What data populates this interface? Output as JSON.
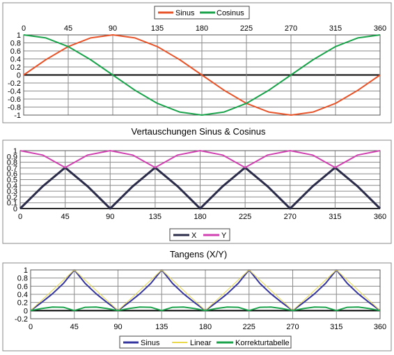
{
  "chart_data": [
    {
      "type": "line",
      "title": "",
      "xlabel": "",
      "ylabel": "",
      "xlim": [
        0,
        360
      ],
      "ylim": [
        -1,
        1
      ],
      "x_ticks": [
        "0",
        "45",
        "90",
        "135",
        "180",
        "225",
        "270",
        "315",
        "360"
      ],
      "y_ticks": [
        "1",
        "0.8",
        "0.6",
        "0.4",
        "0.2",
        "0",
        "-0.2",
        "-0.4",
        "-0.6",
        "-0.8",
        "-1"
      ],
      "x_tick_position": "top",
      "grid": true,
      "legend_position": "top-center",
      "x": [
        0,
        22.5,
        45,
        67.5,
        90,
        112.5,
        135,
        157.5,
        180,
        202.5,
        225,
        247.5,
        270,
        292.5,
        315,
        337.5,
        360
      ],
      "series": [
        {
          "name": "Sinus",
          "color": "#e8542a",
          "values": [
            0,
            0.383,
            0.707,
            0.924,
            1,
            0.924,
            0.707,
            0.383,
            0,
            -0.383,
            -0.707,
            -0.924,
            -1,
            -0.924,
            -0.707,
            -0.383,
            0
          ]
        },
        {
          "name": "Cosinus",
          "color": "#1aa34a",
          "values": [
            1,
            0.924,
            0.707,
            0.383,
            0,
            -0.383,
            -0.707,
            -0.924,
            -1,
            -0.924,
            -0.707,
            -0.383,
            0,
            0.383,
            0.707,
            0.924,
            1
          ]
        }
      ]
    },
    {
      "type": "line",
      "title": "Vertauschungen Sinus & Cosinus",
      "xlabel": "",
      "ylabel": "",
      "xlim": [
        0,
        360
      ],
      "ylim": [
        0,
        1
      ],
      "x_ticks": [
        "0",
        "45",
        "90",
        "135",
        "180",
        "225",
        "270",
        "315",
        "360"
      ],
      "y_ticks": [
        "1",
        "0.9",
        "0.8",
        "0.7",
        "0.6",
        "0.5",
        "0.4",
        "0.3",
        "0.2",
        "0.1",
        "0"
      ],
      "x_tick_position": "bottom",
      "grid": true,
      "legend_position": "bottom-center",
      "x": [
        0,
        22.5,
        45,
        67.5,
        90,
        112.5,
        135,
        157.5,
        180,
        202.5,
        225,
        247.5,
        270,
        292.5,
        315,
        337.5,
        360
      ],
      "series": [
        {
          "name": "X",
          "color": "#2b2b4a",
          "values": [
            0,
            0.383,
            0.707,
            0.383,
            0,
            0.383,
            0.707,
            0.383,
            0,
            0.383,
            0.707,
            0.383,
            0,
            0.383,
            0.707,
            0.383,
            0
          ]
        },
        {
          "name": "Y",
          "color": "#d040b0",
          "values": [
            1,
            0.924,
            0.707,
            0.924,
            1,
            0.924,
            0.707,
            0.924,
            1,
            0.924,
            0.707,
            0.924,
            1,
            0.924,
            0.707,
            0.924,
            1
          ]
        }
      ]
    },
    {
      "type": "line",
      "title": "Tangens (X/Y)",
      "xlabel": "",
      "ylabel": "",
      "xlim": [
        0,
        360
      ],
      "ylim": [
        -0.2,
        1
      ],
      "x_ticks": [
        "0",
        "45",
        "90",
        "135",
        "180",
        "225",
        "270",
        "315",
        "360"
      ],
      "y_ticks": [
        "1",
        "0.8",
        "0.6",
        "0.4",
        "0.2",
        "0",
        "-0.2"
      ],
      "x_tick_position": "bottom",
      "grid": true,
      "legend_position": "bottom-center",
      "x": [
        0,
        11.25,
        22.5,
        33.75,
        45,
        56.25,
        67.5,
        78.75,
        90,
        101.25,
        112.5,
        123.75,
        135,
        146.25,
        157.5,
        168.75,
        180,
        191.25,
        202.5,
        213.75,
        225,
        236.25,
        247.5,
        258.75,
        270,
        281.25,
        292.5,
        303.75,
        315,
        326.25,
        337.5,
        348.75,
        360
      ],
      "series": [
        {
          "name": "Sinus",
          "color": "#3535a0",
          "values": [
            0,
            0.199,
            0.414,
            0.668,
            1,
            0.668,
            0.414,
            0.199,
            0,
            0.199,
            0.414,
            0.668,
            1,
            0.668,
            0.414,
            0.199,
            0,
            0.199,
            0.414,
            0.668,
            1,
            0.668,
            0.414,
            0.199,
            0,
            0.199,
            0.414,
            0.668,
            1,
            0.668,
            0.414,
            0.199,
            0
          ]
        },
        {
          "name": "Linear",
          "color": "#e8d84a",
          "values": [
            0,
            0.25,
            0.5,
            0.75,
            1,
            0.75,
            0.5,
            0.25,
            0,
            0.25,
            0.5,
            0.75,
            1,
            0.75,
            0.5,
            0.25,
            0,
            0.25,
            0.5,
            0.75,
            1,
            0.75,
            0.5,
            0.25,
            0,
            0.25,
            0.5,
            0.75,
            1,
            0.75,
            0.5,
            0.25,
            0
          ]
        },
        {
          "name": "Korrekturtabelle",
          "color": "#1aa34a",
          "values": [
            0,
            0.051,
            0.086,
            0.082,
            0,
            0.082,
            0.086,
            0.051,
            0,
            0.051,
            0.086,
            0.082,
            0,
            0.082,
            0.086,
            0.051,
            0,
            0.051,
            0.086,
            0.082,
            0,
            0.082,
            0.086,
            0.051,
            0,
            0.051,
            0.086,
            0.082,
            0,
            0.082,
            0.086,
            0.051,
            0
          ]
        }
      ]
    }
  ]
}
